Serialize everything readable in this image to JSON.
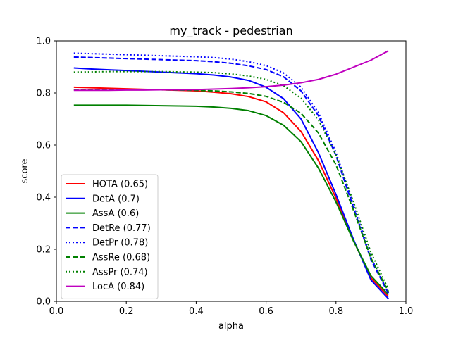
{
  "chart_data": {
    "type": "line",
    "title": "my_track - pedestrian",
    "xlabel": "alpha",
    "ylabel": "score",
    "xlim": [
      0.0,
      1.0
    ],
    "ylim": [
      0.0,
      1.0
    ],
    "xticks": [
      "0.0",
      "0.2",
      "0.4",
      "0.6",
      "0.8",
      "1.0"
    ],
    "yticks": [
      "0.0",
      "0.2",
      "0.4",
      "0.6",
      "0.8",
      "1.0"
    ],
    "grid": false,
    "legend_position": "lower-left",
    "x": [
      0.05,
      0.1,
      0.15,
      0.2,
      0.25,
      0.3,
      0.35,
      0.4,
      0.45,
      0.5,
      0.55,
      0.6,
      0.65,
      0.7,
      0.75,
      0.8,
      0.85,
      0.9,
      0.95
    ],
    "series": [
      {
        "name": "HOTA (0.65)",
        "color": "#ff0000",
        "dash": "solid",
        "values": [
          0.822,
          0.82,
          0.818,
          0.816,
          0.814,
          0.812,
          0.81,
          0.808,
          0.803,
          0.797,
          0.786,
          0.766,
          0.724,
          0.652,
          0.54,
          0.396,
          0.234,
          0.09,
          0.018
        ]
      },
      {
        "name": "DetA (0.7)",
        "color": "#0000ff",
        "dash": "solid",
        "values": [
          0.896,
          0.892,
          0.889,
          0.886,
          0.883,
          0.88,
          0.877,
          0.874,
          0.869,
          0.861,
          0.848,
          0.822,
          0.778,
          0.7,
          0.57,
          0.41,
          0.238,
          0.082,
          0.01
        ]
      },
      {
        "name": "AssA (0.6)",
        "color": "#008000",
        "dash": "solid",
        "values": [
          0.753,
          0.753,
          0.753,
          0.753,
          0.752,
          0.751,
          0.75,
          0.749,
          0.746,
          0.741,
          0.732,
          0.713,
          0.676,
          0.613,
          0.511,
          0.382,
          0.232,
          0.098,
          0.026
        ]
      },
      {
        "name": "DetRe (0.77)",
        "color": "#0000ff",
        "dash": "dashed",
        "values": [
          0.938,
          0.936,
          0.934,
          0.932,
          0.93,
          0.928,
          0.926,
          0.924,
          0.92,
          0.914,
          0.904,
          0.89,
          0.862,
          0.808,
          0.712,
          0.56,
          0.36,
          0.16,
          0.03
        ]
      },
      {
        "name": "DetPr (0.78)",
        "color": "#0000ff",
        "dash": "dotted",
        "values": [
          0.953,
          0.951,
          0.949,
          0.947,
          0.945,
          0.943,
          0.941,
          0.939,
          0.936,
          0.93,
          0.92,
          0.905,
          0.877,
          0.822,
          0.724,
          0.572,
          0.37,
          0.168,
          0.032
        ]
      },
      {
        "name": "AssRe (0.68)",
        "color": "#008000",
        "dash": "dashed",
        "values": [
          0.812,
          0.812,
          0.812,
          0.812,
          0.812,
          0.812,
          0.811,
          0.81,
          0.808,
          0.804,
          0.798,
          0.787,
          0.764,
          0.722,
          0.646,
          0.524,
          0.35,
          0.166,
          0.038
        ]
      },
      {
        "name": "AssPr (0.74)",
        "color": "#008000",
        "dash": "dotted",
        "values": [
          0.88,
          0.881,
          0.882,
          0.882,
          0.882,
          0.882,
          0.881,
          0.88,
          0.878,
          0.873,
          0.865,
          0.852,
          0.828,
          0.78,
          0.696,
          0.562,
          0.382,
          0.188,
          0.046
        ]
      },
      {
        "name": "LocA (0.84)",
        "color": "#bf00bf",
        "dash": "solid",
        "values": [
          0.81,
          0.81,
          0.81,
          0.811,
          0.811,
          0.812,
          0.812,
          0.813,
          0.815,
          0.817,
          0.82,
          0.824,
          0.83,
          0.839,
          0.852,
          0.872,
          0.899,
          0.926,
          0.962
        ]
      }
    ]
  }
}
